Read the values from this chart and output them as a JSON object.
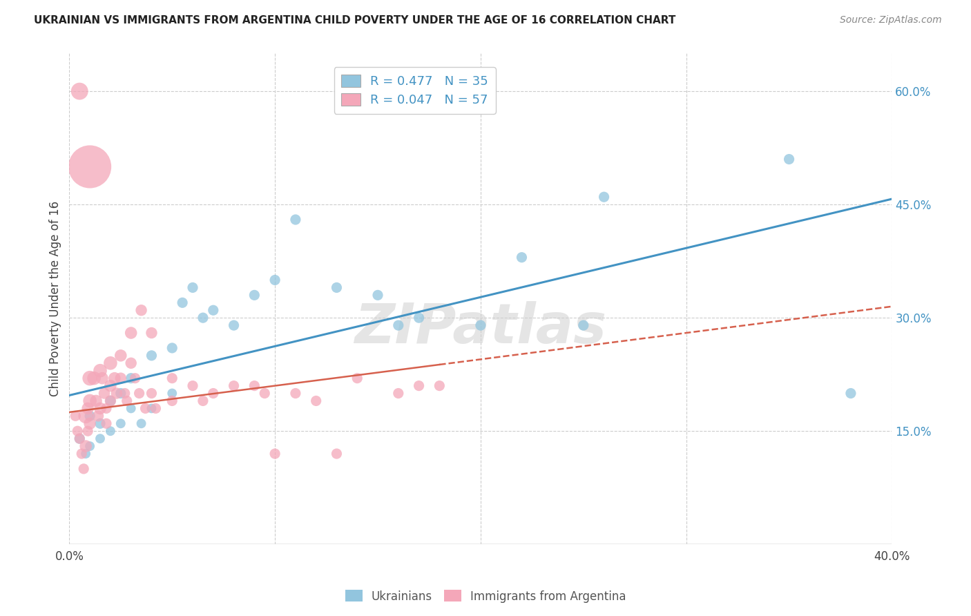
{
  "title": "UKRAINIAN VS IMMIGRANTS FROM ARGENTINA CHILD POVERTY UNDER THE AGE OF 16 CORRELATION CHART",
  "source": "Source: ZipAtlas.com",
  "ylabel": "Child Poverty Under the Age of 16",
  "x_min": 0.0,
  "x_max": 0.4,
  "y_min": 0.0,
  "y_max": 0.65,
  "x_ticks": [
    0.0,
    0.1,
    0.2,
    0.3,
    0.4
  ],
  "x_tick_labels": [
    "0.0%",
    "",
    "",
    "",
    "40.0%"
  ],
  "y_tick_labels_right": [
    "15.0%",
    "30.0%",
    "45.0%",
    "60.0%"
  ],
  "y_tick_vals_right": [
    0.15,
    0.3,
    0.45,
    0.6
  ],
  "blue_color": "#92c5de",
  "pink_color": "#f4a7b9",
  "blue_line_color": "#4393c3",
  "pink_line_color": "#d6604d",
  "watermark": "ZIPatlas",
  "background_color": "#ffffff",
  "grid_color": "#cccccc",
  "legend_text_blue": "R = 0.477   N = 35",
  "legend_text_pink": "R = 0.047   N = 57",
  "ukrainians_x": [
    0.005,
    0.008,
    0.01,
    0.01,
    0.015,
    0.015,
    0.02,
    0.02,
    0.025,
    0.025,
    0.03,
    0.03,
    0.035,
    0.04,
    0.04,
    0.05,
    0.05,
    0.055,
    0.06,
    0.065,
    0.07,
    0.08,
    0.09,
    0.1,
    0.11,
    0.13,
    0.15,
    0.16,
    0.17,
    0.2,
    0.22,
    0.25,
    0.26,
    0.35,
    0.38
  ],
  "ukrainians_y": [
    0.14,
    0.12,
    0.17,
    0.13,
    0.16,
    0.14,
    0.19,
    0.15,
    0.2,
    0.16,
    0.22,
    0.18,
    0.16,
    0.25,
    0.18,
    0.26,
    0.2,
    0.32,
    0.34,
    0.3,
    0.31,
    0.29,
    0.33,
    0.35,
    0.43,
    0.34,
    0.33,
    0.29,
    0.3,
    0.29,
    0.38,
    0.29,
    0.46,
    0.51,
    0.2
  ],
  "ukrainians_size": [
    30,
    25,
    30,
    25,
    30,
    25,
    30,
    25,
    30,
    25,
    30,
    25,
    25,
    30,
    25,
    30,
    25,
    30,
    30,
    30,
    30,
    30,
    30,
    30,
    30,
    30,
    30,
    30,
    30,
    30,
    30,
    30,
    30,
    30,
    30
  ],
  "argentina_x": [
    0.003,
    0.004,
    0.005,
    0.005,
    0.006,
    0.007,
    0.008,
    0.008,
    0.009,
    0.009,
    0.01,
    0.01,
    0.01,
    0.01,
    0.012,
    0.013,
    0.014,
    0.015,
    0.015,
    0.016,
    0.017,
    0.018,
    0.018,
    0.02,
    0.02,
    0.02,
    0.022,
    0.023,
    0.025,
    0.025,
    0.027,
    0.028,
    0.03,
    0.03,
    0.032,
    0.034,
    0.035,
    0.037,
    0.04,
    0.04,
    0.042,
    0.05,
    0.05,
    0.06,
    0.065,
    0.07,
    0.08,
    0.09,
    0.095,
    0.1,
    0.11,
    0.12,
    0.13,
    0.14,
    0.16,
    0.17,
    0.18
  ],
  "argentina_y": [
    0.17,
    0.15,
    0.6,
    0.14,
    0.12,
    0.1,
    0.17,
    0.13,
    0.18,
    0.15,
    0.5,
    0.22,
    0.19,
    0.16,
    0.22,
    0.19,
    0.17,
    0.23,
    0.18,
    0.22,
    0.2,
    0.18,
    0.16,
    0.24,
    0.21,
    0.19,
    0.22,
    0.2,
    0.25,
    0.22,
    0.2,
    0.19,
    0.28,
    0.24,
    0.22,
    0.2,
    0.31,
    0.18,
    0.28,
    0.2,
    0.18,
    0.22,
    0.19,
    0.21,
    0.19,
    0.2,
    0.21,
    0.21,
    0.2,
    0.12,
    0.2,
    0.19,
    0.12,
    0.22,
    0.2,
    0.21,
    0.21
  ],
  "argentina_size": [
    30,
    30,
    80,
    30,
    30,
    30,
    60,
    40,
    40,
    30,
    500,
    60,
    50,
    40,
    50,
    40,
    35,
    50,
    40,
    40,
    35,
    30,
    30,
    50,
    40,
    35,
    40,
    35,
    40,
    35,
    30,
    30,
    40,
    35,
    30,
    30,
    35,
    30,
    35,
    30,
    30,
    30,
    30,
    30,
    30,
    30,
    30,
    30,
    30,
    30,
    30,
    30,
    30,
    30,
    30,
    30,
    30
  ]
}
